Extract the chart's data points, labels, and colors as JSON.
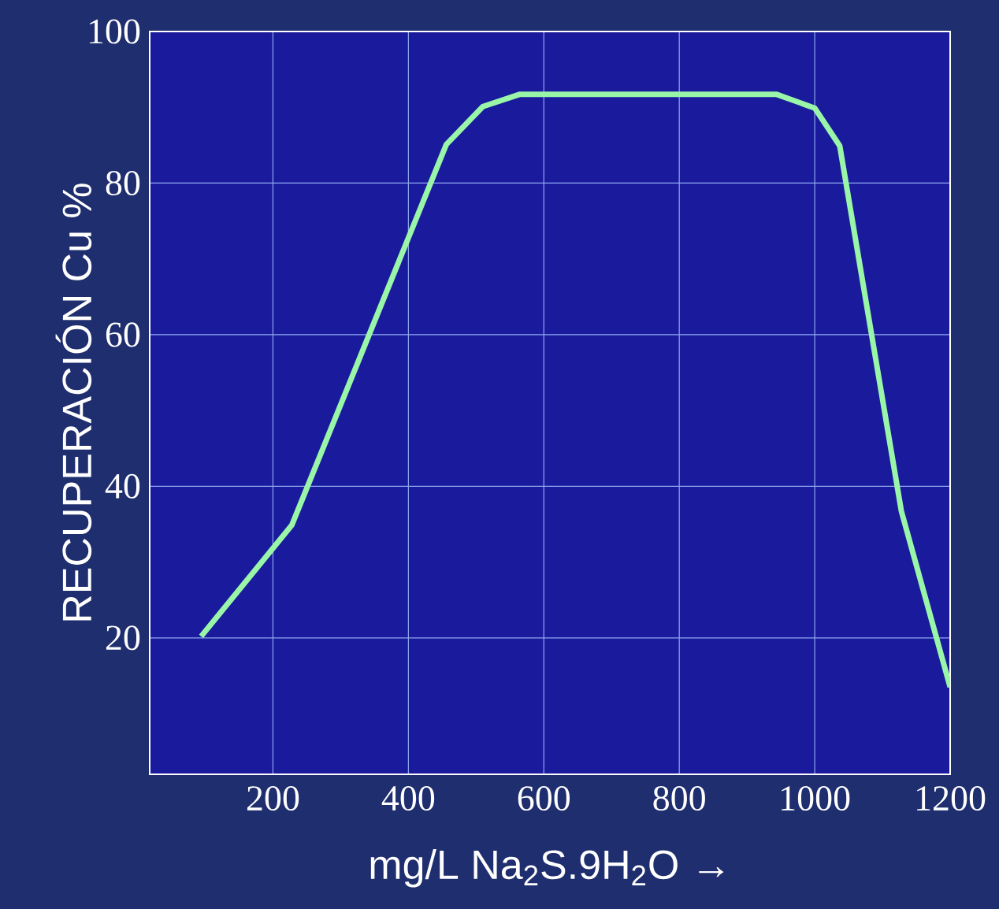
{
  "chart_data": {
    "type": "line",
    "xlabel": "mg/L Na$_{2}$S.9H$_{2}$O   →",
    "ylabel": "RECUPERACIÓN Cu %",
    "x": [
      94,
      228,
      456,
      510,
      564,
      944,
      1000,
      1037,
      1128,
      1200
    ],
    "series": [
      {
        "color": "#99f5a8",
        "values": [
          20.2,
          34.9,
          85.1,
          90.1,
          91.7,
          91.7,
          89.9,
          84.9,
          36.7,
          13.5
        ]
      }
    ],
    "xlim": [
      18,
      1200
    ],
    "ylim": [
      2,
      100
    ],
    "xticks": [
      200,
      400,
      600,
      800,
      1000,
      1200
    ],
    "yticks": [
      20,
      40,
      60,
      80,
      100
    ],
    "grid": true,
    "marker": "none",
    "line_style": "solid"
  }
}
